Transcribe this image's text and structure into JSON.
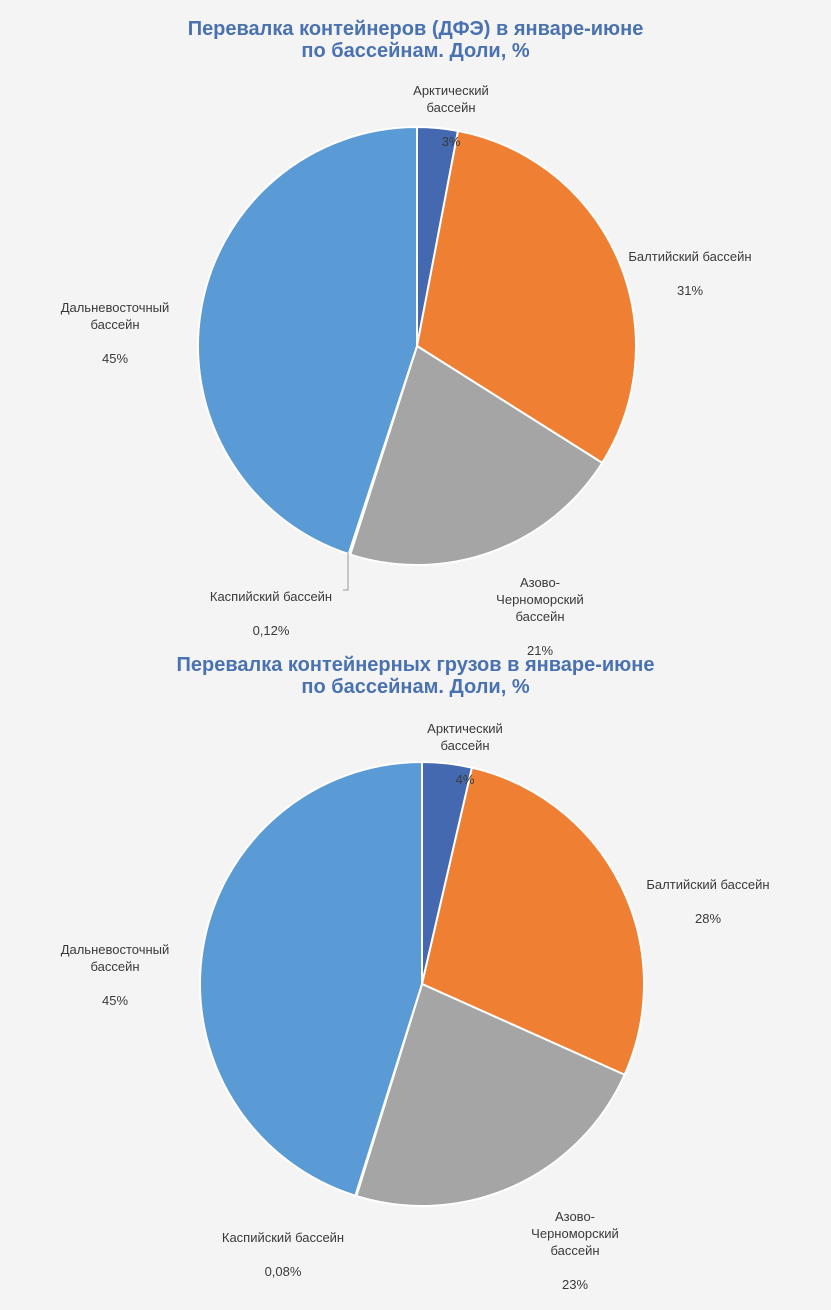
{
  "chart_data": [
    {
      "type": "pie",
      "title": [
        "Перевалка контейнеров (ДФЭ) в январе-июне",
        "по бассейнам. Доли, %"
      ],
      "slices": [
        {
          "label": "Арктический\nбассейн",
          "value_label": "3%",
          "value": 3,
          "color": "#4569b0"
        },
        {
          "label": "Балтийский бассейн",
          "value_label": "31%",
          "value": 31,
          "color": "#ee7f33"
        },
        {
          "label": "Азово-\nЧерноморский\nбассейн",
          "value_label": "21%",
          "value": 21,
          "color": "#a5a5a5"
        },
        {
          "label": "Каспийский бассейн",
          "value_label": "0,12%",
          "value": 0.12,
          "color": "#fec000"
        },
        {
          "label": "Дальневосточный\nбассейн",
          "value_label": "45%",
          "value": 45,
          "color": "#5b9bd5"
        }
      ]
    },
    {
      "type": "pie",
      "title": [
        "Перевалка контейнерных грузов в январе-июне",
        "по бассейнам. Доли, %"
      ],
      "slices": [
        {
          "label": "Арктический\nбассейн",
          "value_label": "4%",
          "value": 3.6,
          "color": "#4569b0"
        },
        {
          "label": "Балтийский бассейн",
          "value_label": "28%",
          "value": 28,
          "color": "#ee7f33"
        },
        {
          "label": "Азово-\nЧерноморский\nбассейн",
          "value_label": "23%",
          "value": 23,
          "color": "#a5a5a5"
        },
        {
          "label": "Каспийский бассейн",
          "value_label": "0,08%",
          "value": 0.08,
          "color": "#fec000"
        },
        {
          "label": "Дальневосточный\nбассейн",
          "value_label": "45%",
          "value": 45,
          "color": "#5b9bd5"
        }
      ]
    }
  ]
}
